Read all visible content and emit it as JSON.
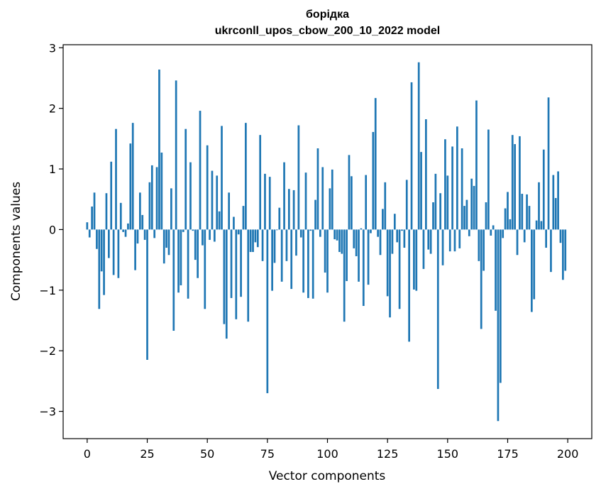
{
  "chart_data": {
    "type": "bar",
    "title_line1": "борідка",
    "title_line2": "ukrconll_upos_cbow_200_10_2022 model",
    "xlabel": "Vector components",
    "ylabel": "Components values",
    "xlim": [
      -10,
      210
    ],
    "ylim": [
      -3.45,
      3.05
    ],
    "xticks": [
      0,
      25,
      50,
      75,
      100,
      125,
      150,
      175,
      200
    ],
    "yticks": [
      -3,
      -2,
      -1,
      0,
      1,
      2,
      3
    ],
    "ytick_labels": [
      "−3",
      "−2",
      "−1",
      "0",
      "1",
      "2",
      "3"
    ],
    "bar_color": "#1f77b4",
    "values": [
      0.12,
      -0.13,
      0.38,
      0.61,
      -0.32,
      -1.31,
      -0.69,
      -1.08,
      0.6,
      -0.47,
      1.12,
      -0.75,
      1.66,
      -0.8,
      0.44,
      -0.04,
      -0.12,
      0.1,
      1.42,
      1.76,
      -0.67,
      -0.23,
      0.61,
      0.24,
      -0.17,
      -2.15,
      0.78,
      1.06,
      -0.14,
      1.03,
      2.64,
      1.27,
      -0.56,
      -0.3,
      -0.42,
      0.68,
      -1.67,
      2.46,
      -1.04,
      -0.92,
      -0.04,
      1.66,
      -1.14,
      1.11,
      -0.02,
      -0.5,
      -0.8,
      1.96,
      -0.26,
      -1.31,
      1.39,
      -0.17,
      0.97,
      -0.2,
      0.89,
      0.3,
      1.71,
      -1.56,
      -1.8,
      0.61,
      -1.13,
      0.21,
      -1.48,
      -0.08,
      -1.11,
      0.39,
      1.76,
      -1.52,
      -0.37,
      -0.37,
      -0.21,
      -0.29,
      1.56,
      -0.52,
      0.92,
      -2.7,
      0.87,
      -1.01,
      -0.55,
      -0.01,
      0.36,
      -0.86,
      1.11,
      -0.52,
      0.67,
      -0.98,
      0.65,
      -0.43,
      1.72,
      -0.13,
      -1.04,
      0.94,
      -1.13,
      -0.02,
      -1.14,
      0.49,
      1.34,
      -0.12,
      1.03,
      -0.71,
      -1.04,
      0.68,
      0.99,
      -0.16,
      -0.18,
      -0.37,
      -0.4,
      -1.52,
      -0.85,
      1.23,
      0.88,
      -0.31,
      -0.44,
      -0.86,
      0.02,
      -1.26,
      0.9,
      -0.91,
      -0.06,
      1.61,
      2.17,
      -0.12,
      -0.42,
      0.34,
      0.78,
      -1.1,
      -1.45,
      -0.4,
      0.26,
      -0.21,
      -1.31,
      -0.02,
      -0.3,
      0.82,
      -1.85,
      2.43,
      -0.99,
      -1.01,
      2.76,
      1.28,
      -0.65,
      1.82,
      -0.33,
      -0.4,
      0.45,
      0.92,
      -2.63,
      0.6,
      -0.59,
      1.49,
      0.89,
      -0.36,
      1.37,
      -0.36,
      1.7,
      -0.31,
      1.34,
      0.39,
      0.49,
      -0.11,
      0.84,
      0.72,
      2.13,
      -0.52,
      -1.64,
      -0.68,
      0.45,
      1.65,
      -0.1,
      0.07,
      -1.34,
      -3.16,
      -2.53,
      -0.14,
      0.35,
      0.62,
      0.17,
      1.56,
      1.41,
      -0.42,
      1.54,
      0.59,
      -0.21,
      0.58,
      0.39,
      -1.36,
      -1.15,
      0.15,
      0.78,
      0.14,
      1.32,
      -0.3,
      2.18,
      -0.7,
      0.9,
      0.52,
      0.96,
      -0.22,
      -0.83,
      -0.68
    ]
  }
}
